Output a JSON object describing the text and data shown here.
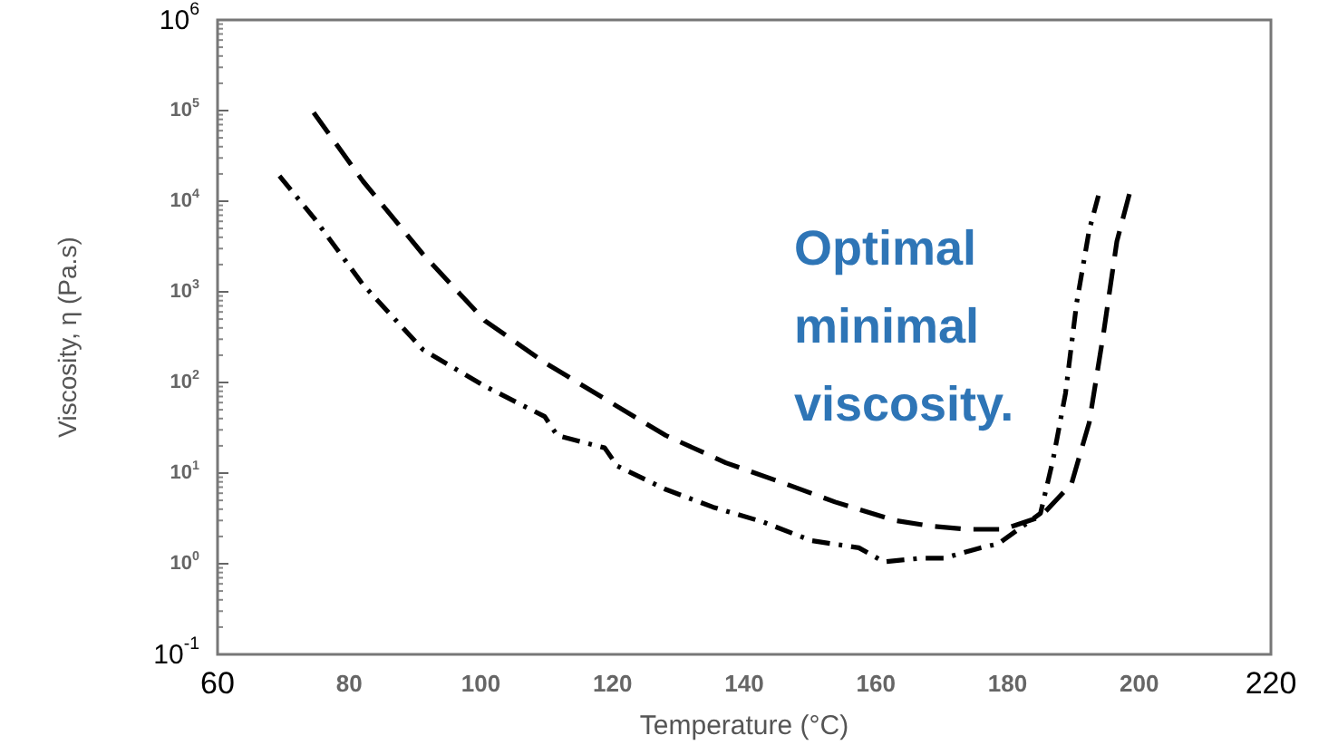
{
  "chart_data": {
    "type": "line",
    "xlabel": "Temperature (°C)",
    "ylabel": "Viscosity, η (Pa.s)",
    "log": "y",
    "grid": false,
    "marker": "none",
    "xlim": [
      60,
      220
    ],
    "xticks": [
      60,
      80,
      100,
      120,
      140,
      160,
      180,
      200,
      220
    ],
    "ylim": [
      0.1,
      1000000
    ],
    "yticks": [
      {
        "value": 0.1,
        "label": "10$^{-1}$"
      },
      {
        "value": 1,
        "label": "10$^{0}$"
      },
      {
        "value": 10,
        "label": "10$^{1}$"
      },
      {
        "value": 100,
        "label": "10$^{2}$"
      },
      {
        "value": 1000,
        "label": "10$^{3}$"
      },
      {
        "value": 10000,
        "label": "10$^{4}$"
      },
      {
        "value": 100000,
        "label": "10$^{5}$"
      },
      {
        "value": 1000000,
        "label": "10$^{6}$"
      }
    ],
    "annotations": [
      "Optimal minimal viscosity."
    ],
    "series": [
      {
        "color": "#000000",
        "line_style": "dashdot",
        "x": [
          69.4,
          74.6,
          82.1,
          91.2,
          100.6,
          109.7,
          111.6,
          118.8,
          120.7,
          128.1,
          135.3,
          142.8,
          150.2,
          157.4,
          161.2,
          166.8,
          170.3,
          175.9,
          178.6,
          185,
          186.9,
          188.8,
          190.5,
          192.4,
          193.8
        ],
        "values": [
          19000,
          6600,
          1200,
          230,
          91,
          42,
          26,
          19,
          12,
          6.6,
          4.2,
          2.9,
          1.8,
          1.5,
          1.05,
          1.15,
          1.15,
          1.5,
          1.66,
          3.6,
          14,
          76,
          760,
          4800,
          11500
        ]
      },
      {
        "color": "#000000",
        "line_style": "dashed",
        "x": [
          74.6,
          82.1,
          91.2,
          100.6,
          109.7,
          118.8,
          128.1,
          137.2,
          146.3,
          153.8,
          162.9,
          168.4,
          173.9,
          179.4,
          185,
          189.7,
          192.4,
          194.6,
          196.6,
          198.5
        ],
        "values": [
          95000,
          16600,
          2600,
          480,
          166,
          66,
          26,
          13,
          7.6,
          4.8,
          3.0,
          2.6,
          2.4,
          2.4,
          3.3,
          7.6,
          36,
          360,
          3600,
          12000
        ]
      }
    ]
  }
}
